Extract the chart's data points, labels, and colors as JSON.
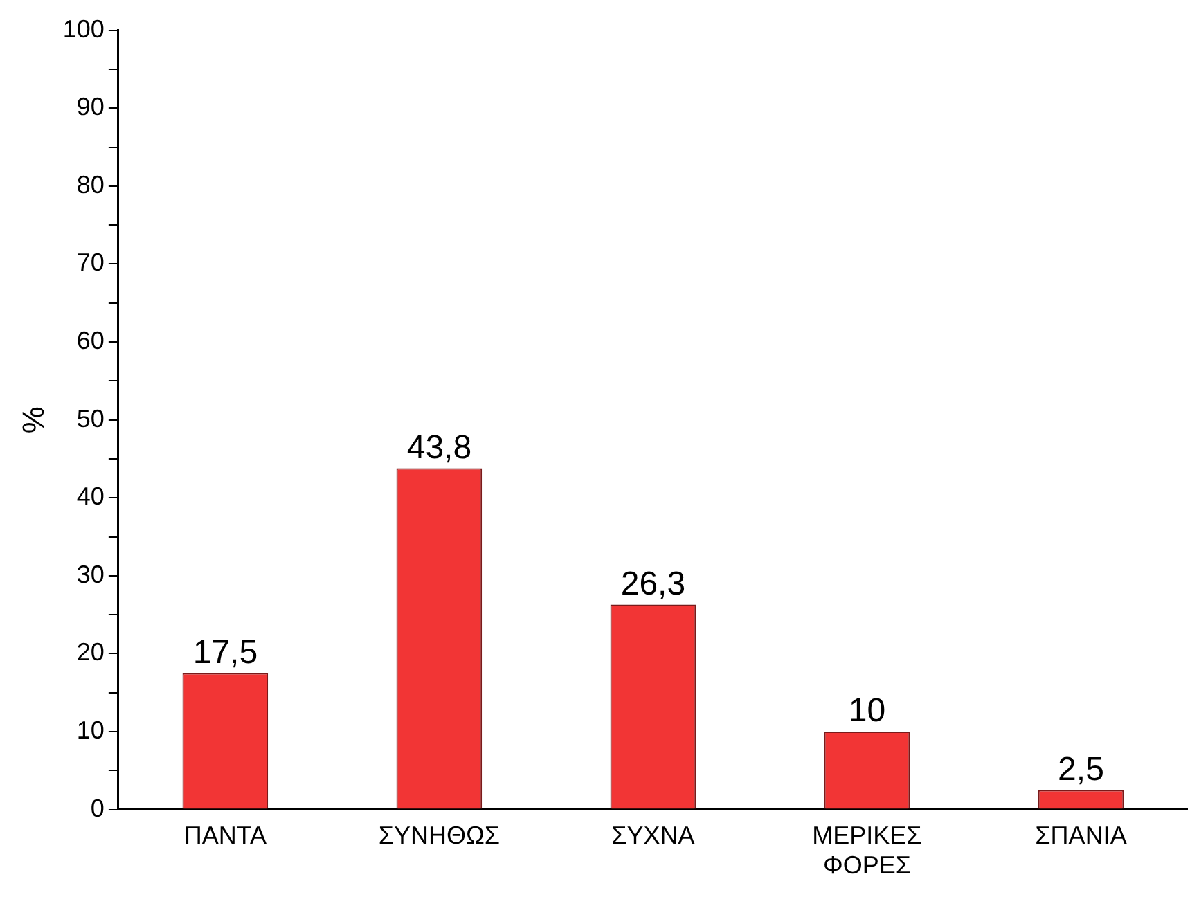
{
  "chart_data": {
    "type": "bar",
    "ylabel": "%",
    "categories": [
      "ΠΑΝΤΑ",
      "ΣΥΝΗΘΩΣ",
      "ΣΥΧΝΑ",
      "ΜΕΡΙΚΕΣ ΦΟΡΕΣ",
      "ΣΠΑΝΙΑ"
    ],
    "values": [
      17.5,
      43.8,
      26.3,
      10,
      2.5
    ],
    "value_labels": [
      "17,5",
      "43,8",
      "26,3",
      "10",
      "2,5"
    ],
    "color": "#f23535",
    "ylim": [
      0,
      100
    ],
    "yticks": [
      0,
      {
        "value": 5,
        "label": null
      },
      10,
      {
        "value": 15,
        "label": null
      },
      20,
      {
        "value": 25,
        "label": null
      },
      30,
      {
        "value": 35,
        "label": null
      },
      40,
      {
        "value": 45,
        "label": null
      },
      50,
      {
        "value": 55,
        "label": null
      },
      60,
      {
        "value": 65,
        "label": null
      },
      70,
      {
        "value": 75,
        "label": null
      },
      80,
      {
        "value": 85,
        "label": null
      },
      90,
      {
        "value": 95,
        "label": null
      },
      100
    ],
    "grid": false,
    "legend": false
  }
}
